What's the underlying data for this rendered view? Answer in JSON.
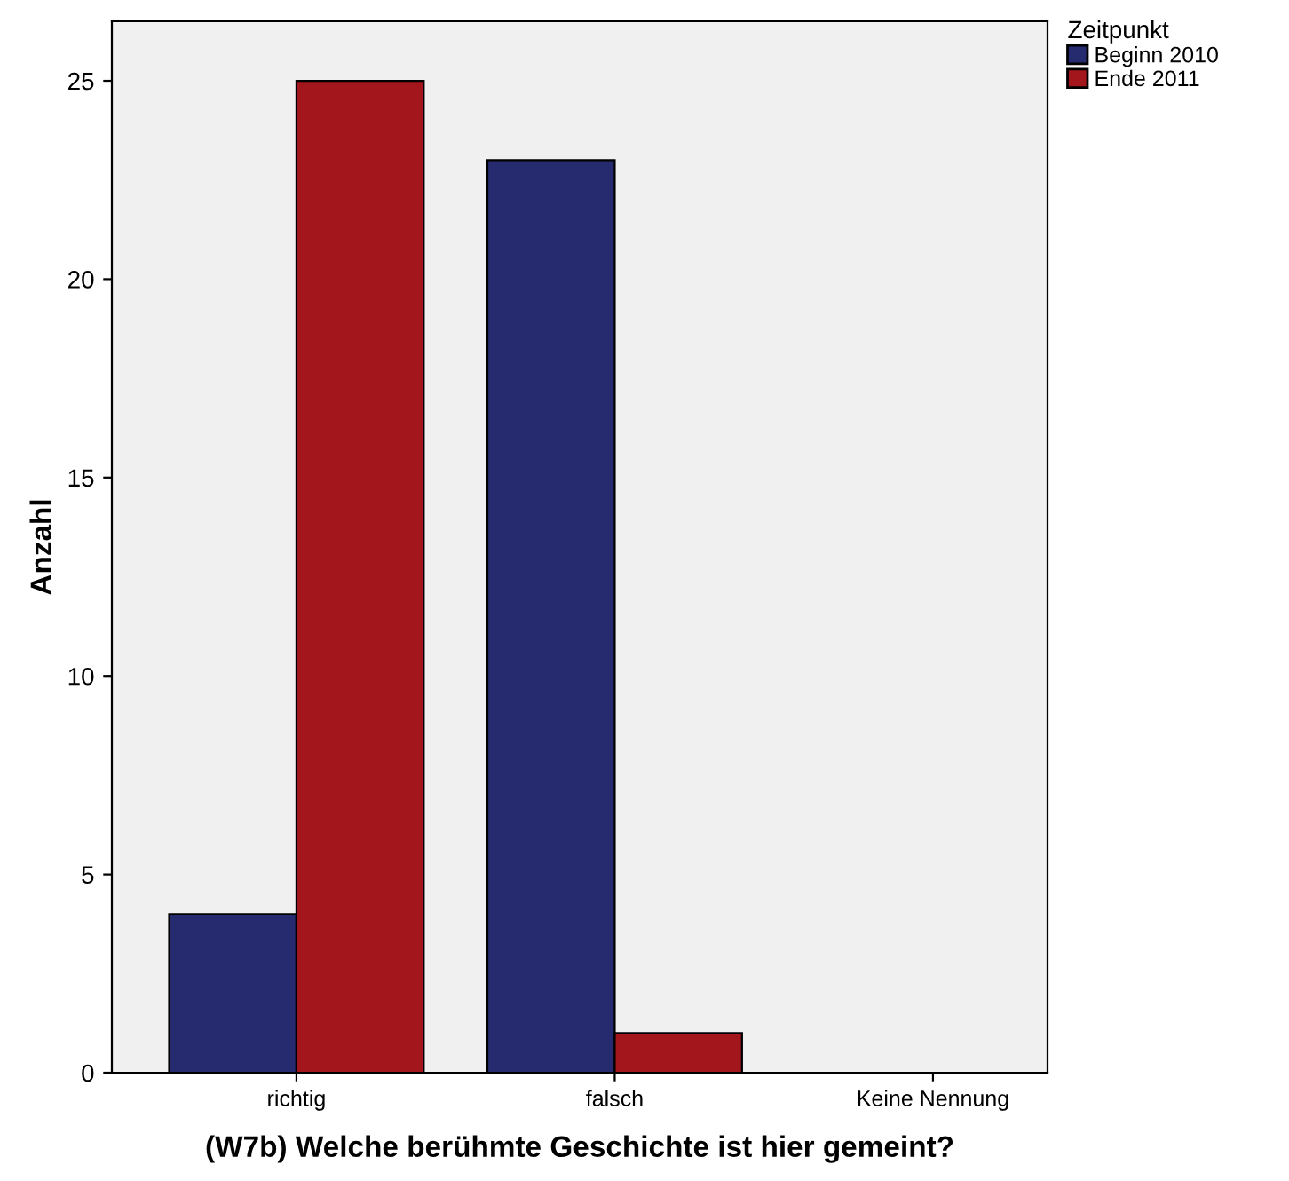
{
  "chart_data": {
    "type": "bar",
    "xlabel": "(W7b) Welche berühmte Geschichte ist hier gemeint?",
    "ylabel": "Anzahl",
    "legend_title": "Zeitpunkt",
    "categories": [
      "richtig",
      "falsch",
      "Keine Nennung"
    ],
    "series": [
      {
        "name": "Beginn 2010",
        "color": "#262a6f",
        "values": [
          4,
          23,
          0
        ]
      },
      {
        "name": "Ende 2011",
        "color": "#a3161b",
        "values": [
          25,
          1,
          0
        ]
      }
    ],
    "ylim": [
      0,
      26.5
    ],
    "yticks": [
      0,
      5,
      10,
      15,
      20,
      25
    ],
    "grid": false,
    "legend": "top right"
  }
}
